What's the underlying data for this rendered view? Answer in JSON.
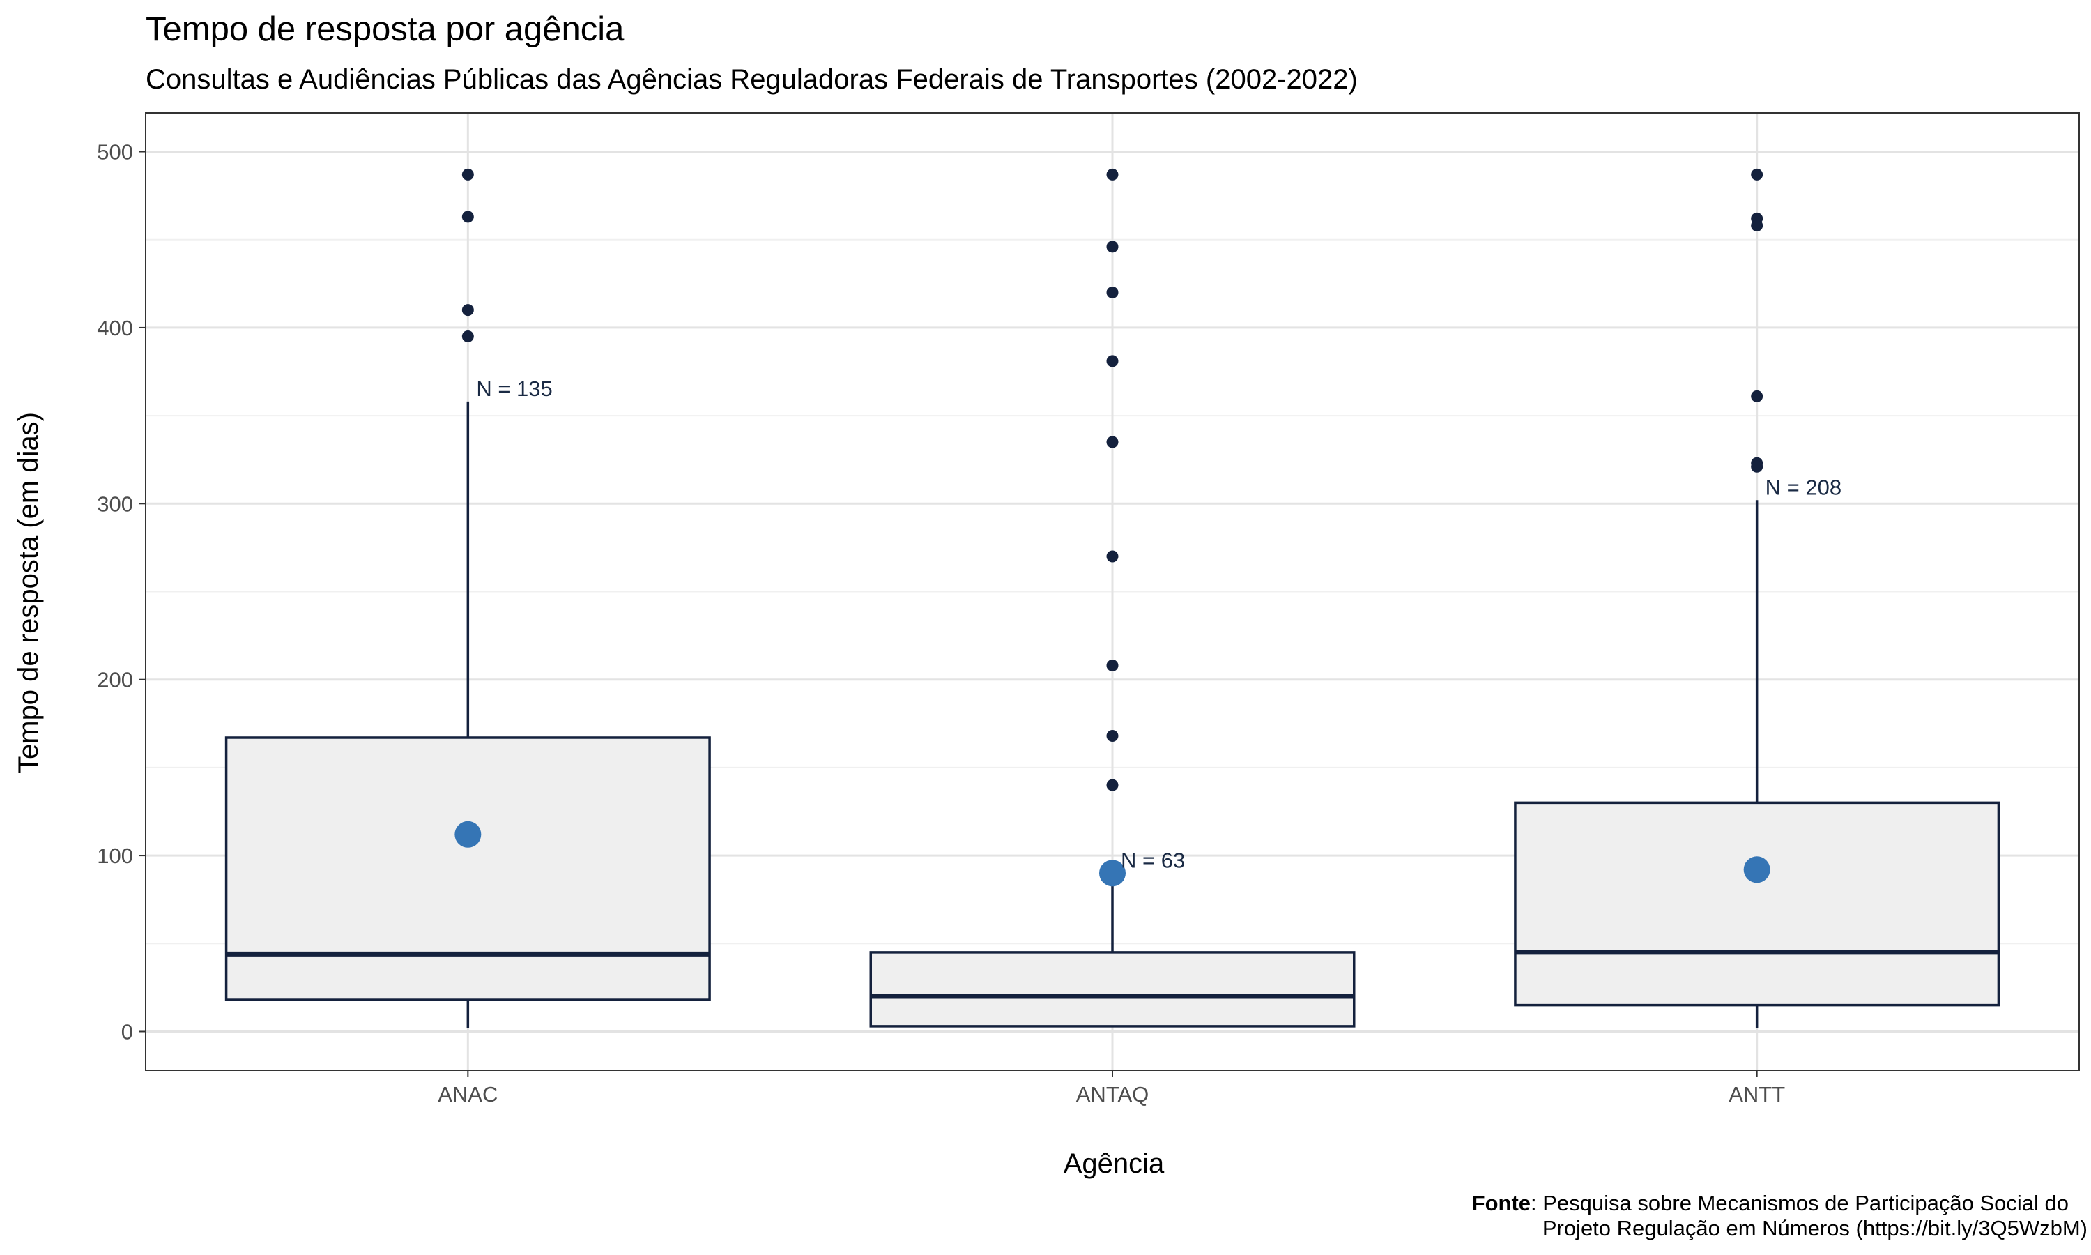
{
  "chart_data": {
    "type": "box",
    "title": "Tempo de resposta por agência",
    "subtitle": "Consultas e Audiências Públicas das Agências Reguladoras Federais de Transportes (2002-2022)",
    "xlabel": "Agência",
    "ylabel": "Tempo de resposta (em dias)",
    "ylim": [
      -22,
      522
    ],
    "yticks": [
      0,
      100,
      200,
      300,
      400,
      500
    ],
    "categories": [
      "ANAC",
      "ANTAQ",
      "ANTT"
    ],
    "boxes": [
      {
        "category": "ANAC",
        "min": 2,
        "q1": 18,
        "median": 44,
        "q3": 167,
        "max": 358,
        "mean": 112,
        "outliers": [
          487,
          463,
          410,
          395
        ],
        "n_label": "N = 135"
      },
      {
        "category": "ANTAQ",
        "min": 3,
        "q1": 3,
        "median": 20,
        "q3": 45,
        "max": 90,
        "mean": 90,
        "outliers": [
          487,
          446,
          420,
          381,
          335,
          270,
          208,
          168,
          140
        ],
        "n_label": "N = 63"
      },
      {
        "category": "ANTT",
        "min": 2,
        "q1": 15,
        "median": 45,
        "q3": 130,
        "max": 302,
        "mean": 92,
        "outliers": [
          487,
          462,
          458,
          361,
          323,
          321
        ],
        "n_label": "N = 208"
      }
    ],
    "grid": true,
    "colors": {
      "box_fill": "#efefef",
      "box_stroke": "#14213d",
      "outlier": "#14213d",
      "mean_point": "#3575b5",
      "grid_major": "#e3e3e3",
      "grid_minor": "#f0f0f0",
      "panel_border": "#333333"
    }
  },
  "caption": {
    "label": "Fonte",
    "line1": ": Pesquisa sobre Mecanismos de Participação Social do",
    "line2": "Projeto Regulação em Números (https://bit.ly/3Q5WzbM)"
  }
}
